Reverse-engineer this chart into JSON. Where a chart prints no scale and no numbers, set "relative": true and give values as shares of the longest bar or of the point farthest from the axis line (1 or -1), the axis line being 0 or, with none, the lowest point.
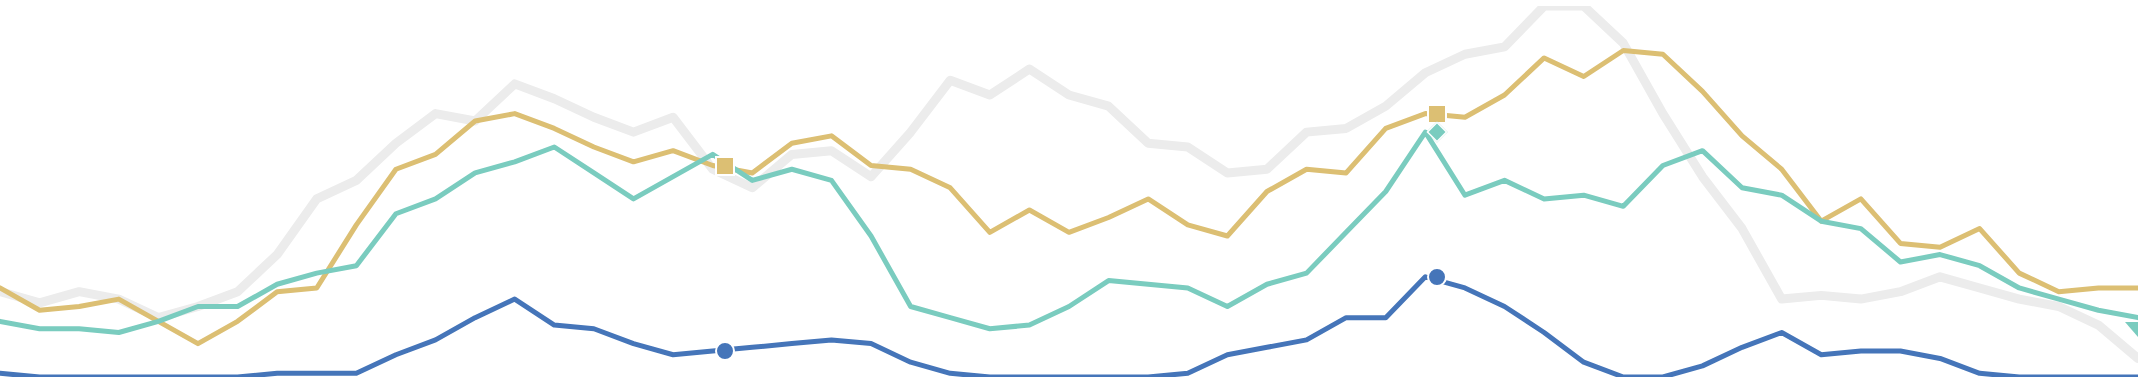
{
  "chart_data": {
    "type": "line",
    "relative": true,
    "categories": [
      null,
      null,
      null,
      null,
      null,
      null,
      null,
      null,
      null,
      null,
      null,
      null,
      null,
      null,
      null,
      null,
      null,
      null,
      null,
      null,
      null,
      null,
      null,
      null,
      null,
      null,
      null,
      null,
      null,
      null,
      null,
      null,
      null,
      null,
      null,
      null,
      null,
      null,
      null,
      null,
      null,
      null,
      null,
      null,
      null,
      null,
      null,
      null,
      null,
      null,
      null,
      null,
      null,
      null,
      null
    ],
    "series": [
      {
        "color": "#ececec",
        "values": [
          0.23,
          0.2,
          0.23,
          0.21,
          0.16,
          0.19,
          0.23,
          0.33,
          0.48,
          0.53,
          0.63,
          0.71,
          0.69,
          0.79,
          0.75,
          0.7,
          0.66,
          0.7,
          0.56,
          0.51,
          0.6,
          0.61,
          0.54,
          0.66,
          0.8,
          0.76,
          0.83,
          0.76,
          0.73,
          0.63,
          0.62,
          0.55,
          0.56,
          0.66,
          0.67,
          0.73,
          0.82,
          0.87,
          0.89,
          1,
          1,
          0.9,
          0.71,
          0.54,
          0.4,
          0.21,
          0.22,
          0.21,
          0.23,
          0.27,
          0.24,
          0.21,
          0.19,
          0.14,
          0.05
        ]
      },
      {
        "color": "#dcbf73",
        "values": [
          0.24,
          0.18,
          0.19,
          0.21,
          0.15,
          0.09,
          0.15,
          0.23,
          0.24,
          0.41,
          0.56,
          0.6,
          0.69,
          0.71,
          0.67,
          0.62,
          0.58,
          0.61,
          0.57,
          0.55,
          0.63,
          0.65,
          0.57,
          0.56,
          0.51,
          0.39,
          0.45,
          0.39,
          0.43,
          0.48,
          0.41,
          0.38,
          0.5,
          0.56,
          0.55,
          0.67,
          0.71,
          0.7,
          0.76,
          0.86,
          0.81,
          0.88,
          0.87,
          0.77,
          0.65,
          0.56,
          0.42,
          0.48,
          0.36,
          0.35,
          0.4,
          0.28,
          0.23,
          0.24,
          0.24
        ]
      },
      {
        "color": "#7accbf",
        "values": [
          0.15,
          0.13,
          0.13,
          0.12,
          0.15,
          0.19,
          0.19,
          0.25,
          0.28,
          0.3,
          0.44,
          0.48,
          0.55,
          0.58,
          0.62,
          0.55,
          0.48,
          0.54,
          0.6,
          0.53,
          0.56,
          0.53,
          0.38,
          0.19,
          0.16,
          0.13,
          0.14,
          0.19,
          0.26,
          0.25,
          0.24,
          0.19,
          0.25,
          0.28,
          0.39,
          0.5,
          0.66,
          0.49,
          0.53,
          0.48,
          0.49,
          0.46,
          0.57,
          0.61,
          0.51,
          0.49,
          0.42,
          0.4,
          0.31,
          0.33,
          0.3,
          0.24,
          0.21,
          0.18,
          0.16
        ]
      },
      {
        "color": "#4575b9",
        "values": [
          0.01,
          0,
          0,
          0,
          0,
          0,
          0,
          0.01,
          0.01,
          0.01,
          0.06,
          0.1,
          0.16,
          0.21,
          0.14,
          0.13,
          0.09,
          0.06,
          0.07,
          0.08,
          0.09,
          0.1,
          0.09,
          0.04,
          0.01,
          0,
          0,
          0,
          0,
          0,
          0.01,
          0.06,
          0.08,
          0.1,
          0.16,
          0.16,
          0.27,
          0.24,
          0.19,
          0.12,
          0.04,
          0,
          0,
          0.03,
          0.08,
          0.12,
          0.06,
          0.07,
          0.07,
          0.05,
          0.01,
          0,
          0,
          0,
          0
        ]
      }
    ]
  }
}
